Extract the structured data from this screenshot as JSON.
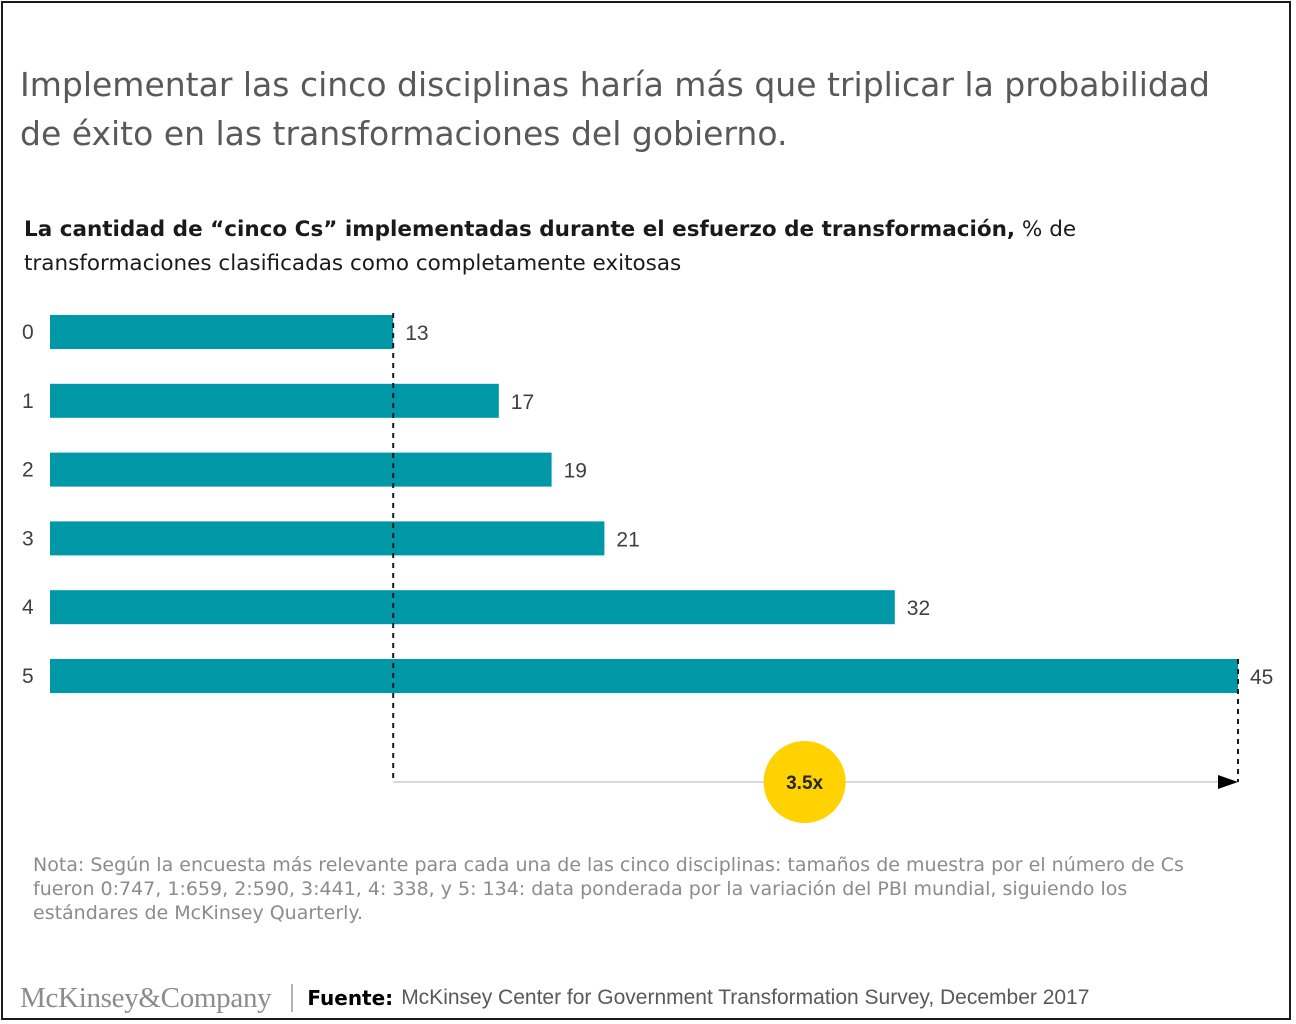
{
  "headline": "Implementar las cinco disciplinas haría más que triplicar la probabilidad de éxito en las transformaciones del gobierno.",
  "subtitle_bold": "La cantidad de “cinco Cs” implementadas durante el esfuerzo de transformación,",
  "subtitle_rest": " % de transformaciones clasificadas como completamente  exitosas",
  "chart_data": {
    "type": "bar",
    "orientation": "horizontal",
    "title": "La cantidad de “cinco Cs” implementadas durante el esfuerzo de transformación, % de transformaciones clasificadas como completamente  exitosas",
    "categories": [
      "0",
      "1",
      "2",
      "3",
      "4",
      "5"
    ],
    "values": [
      13,
      17,
      19,
      21,
      32,
      45
    ],
    "xlim": [
      0,
      45
    ],
    "grid": false,
    "legend": "none",
    "bar_color": "#0097a7",
    "annotation": {
      "label": "3.5x",
      "from_value": 13,
      "to_value": 45,
      "badge_color": "#ffd200"
    }
  },
  "note": "Nota: Según la encuesta más relevante para cada una de las cinco disciplinas: tamaños de muestra por el número de Cs fueron 0:747, 1:659, 2:590, 3:441, 4: 338, y 5: 134: data ponderada por la variación del PBI mundial, siguiendo los estándares de McKinsey Quarterly.",
  "footer": {
    "logo": "McKinsey&Company",
    "source_label": "Fuente:",
    "source_text": "McKinsey Center for Government Transformation Survey, December 2017"
  }
}
